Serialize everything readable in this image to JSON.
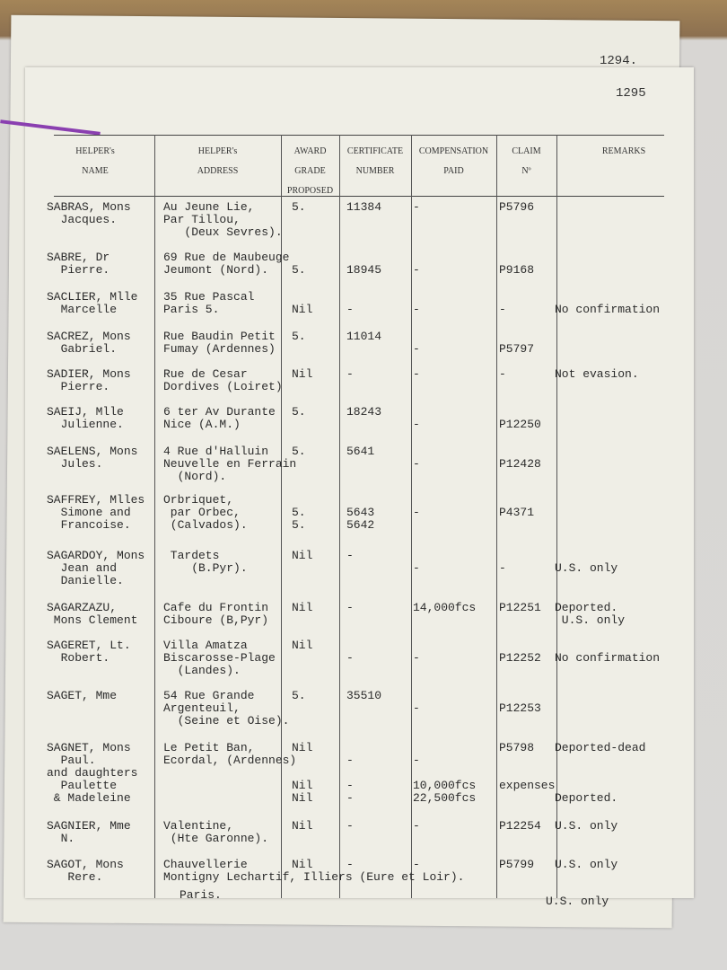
{
  "page_numbers": {
    "back": "1294.",
    "front": "1295"
  },
  "table": {
    "headers": [
      "HELPER's\nNAME",
      "HELPER's\nADDRESS",
      "AWARD\nGRADE\nPROPOSED",
      "CERTIFICATE\nNUMBER",
      "COMPENSATION\nPAID",
      "CLAIM\nNº",
      "REMARKS"
    ],
    "rows": [
      {
        "name": "SABRAS, Mons\n  Jacques.",
        "address": "Au Jeune Lie,\nPar Tillou,\n   (Deux Sevres).",
        "award": "5.",
        "certificate": "11384",
        "compensation": "-",
        "claim": "P5796"
      },
      {
        "name": "SABRE, Dr\n  Pierre.",
        "address": "69 Rue de Maubeuge\nJeumont (Nord).",
        "award": "\n5.",
        "certificate": "\n18945",
        "compensation": "\n-",
        "claim": "\nP9168"
      },
      {
        "name": "SACLIER, Mlle\n  Marcelle",
        "address": "35 Rue Pascal\nParis 5.",
        "award": "\nNil",
        "certificate": "\n-",
        "compensation": "\n-",
        "claim": "\n-",
        "remarks": "\nNo confirmation"
      },
      {
        "name": "SACREZ, Mons\n  Gabriel.",
        "address": "Rue Baudin Petit\nFumay (Ardennes)",
        "award": "5.",
        "certificate": "11014",
        "compensation": "\n-",
        "claim": "\nP5797"
      },
      {
        "name": "SADIER, Mons\n  Pierre.",
        "address": "Rue de Cesar\nDordives (Loiret)",
        "award": "Nil",
        "certificate": "-",
        "compensation": "-",
        "claim": "-",
        "remarks": "Not evasion."
      },
      {
        "name": "SAEIJ, Mlle\n  Julienne.",
        "address": "6 ter Av Durante\nNice (A.M.)",
        "award": "5.",
        "certificate": "18243",
        "compensation": "\n-",
        "claim": "\nP12250"
      },
      {
        "name": "SAELENS, Mons\n  Jules.",
        "address": "4 Rue d'Halluin\nNeuvelle en Ferrain\n  (Nord).",
        "award": "5.",
        "certificate": "5641",
        "compensation": "\n-",
        "claim": "\nP12428"
      },
      {
        "name": "SAFFREY, Mlles\n  Simone and\n  Francoise.",
        "address": "Orbriquet,\n par Orbec,\n (Calvados).",
        "award": "\n5.\n5.",
        "certificate": "\n5643\n5642",
        "compensation": "\n-",
        "claim": "\nP4371"
      },
      {
        "name": "SAGARDOY, Mons\n  Jean and\n  Danielle.",
        "address": " Tardets\n    (B.Pyr).",
        "award": "Nil",
        "certificate": "-",
        "compensation": "\n-",
        "claim": "\n-",
        "remarks": "\nU.S. only"
      },
      {
        "name": "SAGARZAZU,\n Mons Clement",
        "address": "Cafe du Frontin\nCiboure (B,Pyr)",
        "award": "Nil",
        "certificate": "-",
        "compensation": "14,000fcs",
        "claim": "P12251",
        "remarks": "Deported.\n U.S. only"
      },
      {
        "name": "SAGERET, Lt.\n  Robert.",
        "address": "Villa Amatza\nBiscarosse-Plage\n  (Landes).",
        "award": "Nil",
        "certificate": "\n-",
        "compensation": "\n-",
        "claim": "\nP12252",
        "remarks": "\nNo confirmation"
      },
      {
        "name": "SAGET, Mme",
        "address": "54 Rue Grande\nArgenteuil,\n  (Seine et Oise).",
        "award": "5.",
        "certificate": "35510",
        "compensation": "\n-",
        "claim": "\nP12253"
      },
      {
        "name": "SAGNET, Mons\n  Paul.\nand daughters\n  Paulette\n & Madeleine",
        "address": "Le Petit Ban,\nEcordal, (Ardennes)",
        "award": "Nil\n\n\nNil\nNil",
        "certificate": "\n-\n\n-\n-",
        "compensation": "\n-\n\n10,000fcs\n22,500fcs",
        "claim": "P5798\n\n\nexpenses",
        "remarks": "Deported-dead\n\n\n\nDeported."
      },
      {
        "name": "SAGNIER, Mme\n  N.",
        "address": "Valentine,\n (Hte Garonne).",
        "award": "Nil",
        "certificate": "-",
        "compensation": "-",
        "claim": "P12254",
        "remarks": "U.S. only"
      },
      {
        "name": "SAGOT, Mons\n   Rere.",
        "address": "Chauvellerie\nMontigny Lechartif, Illiers (Eure et Loir).",
        "award": "Nil",
        "certificate": "-",
        "compensation": "-",
        "claim": "P5799",
        "remarks": "U.S. only"
      }
    ]
  },
  "page_below": {
    "address": "Paris.",
    "remarks": "U.S. only"
  }
}
